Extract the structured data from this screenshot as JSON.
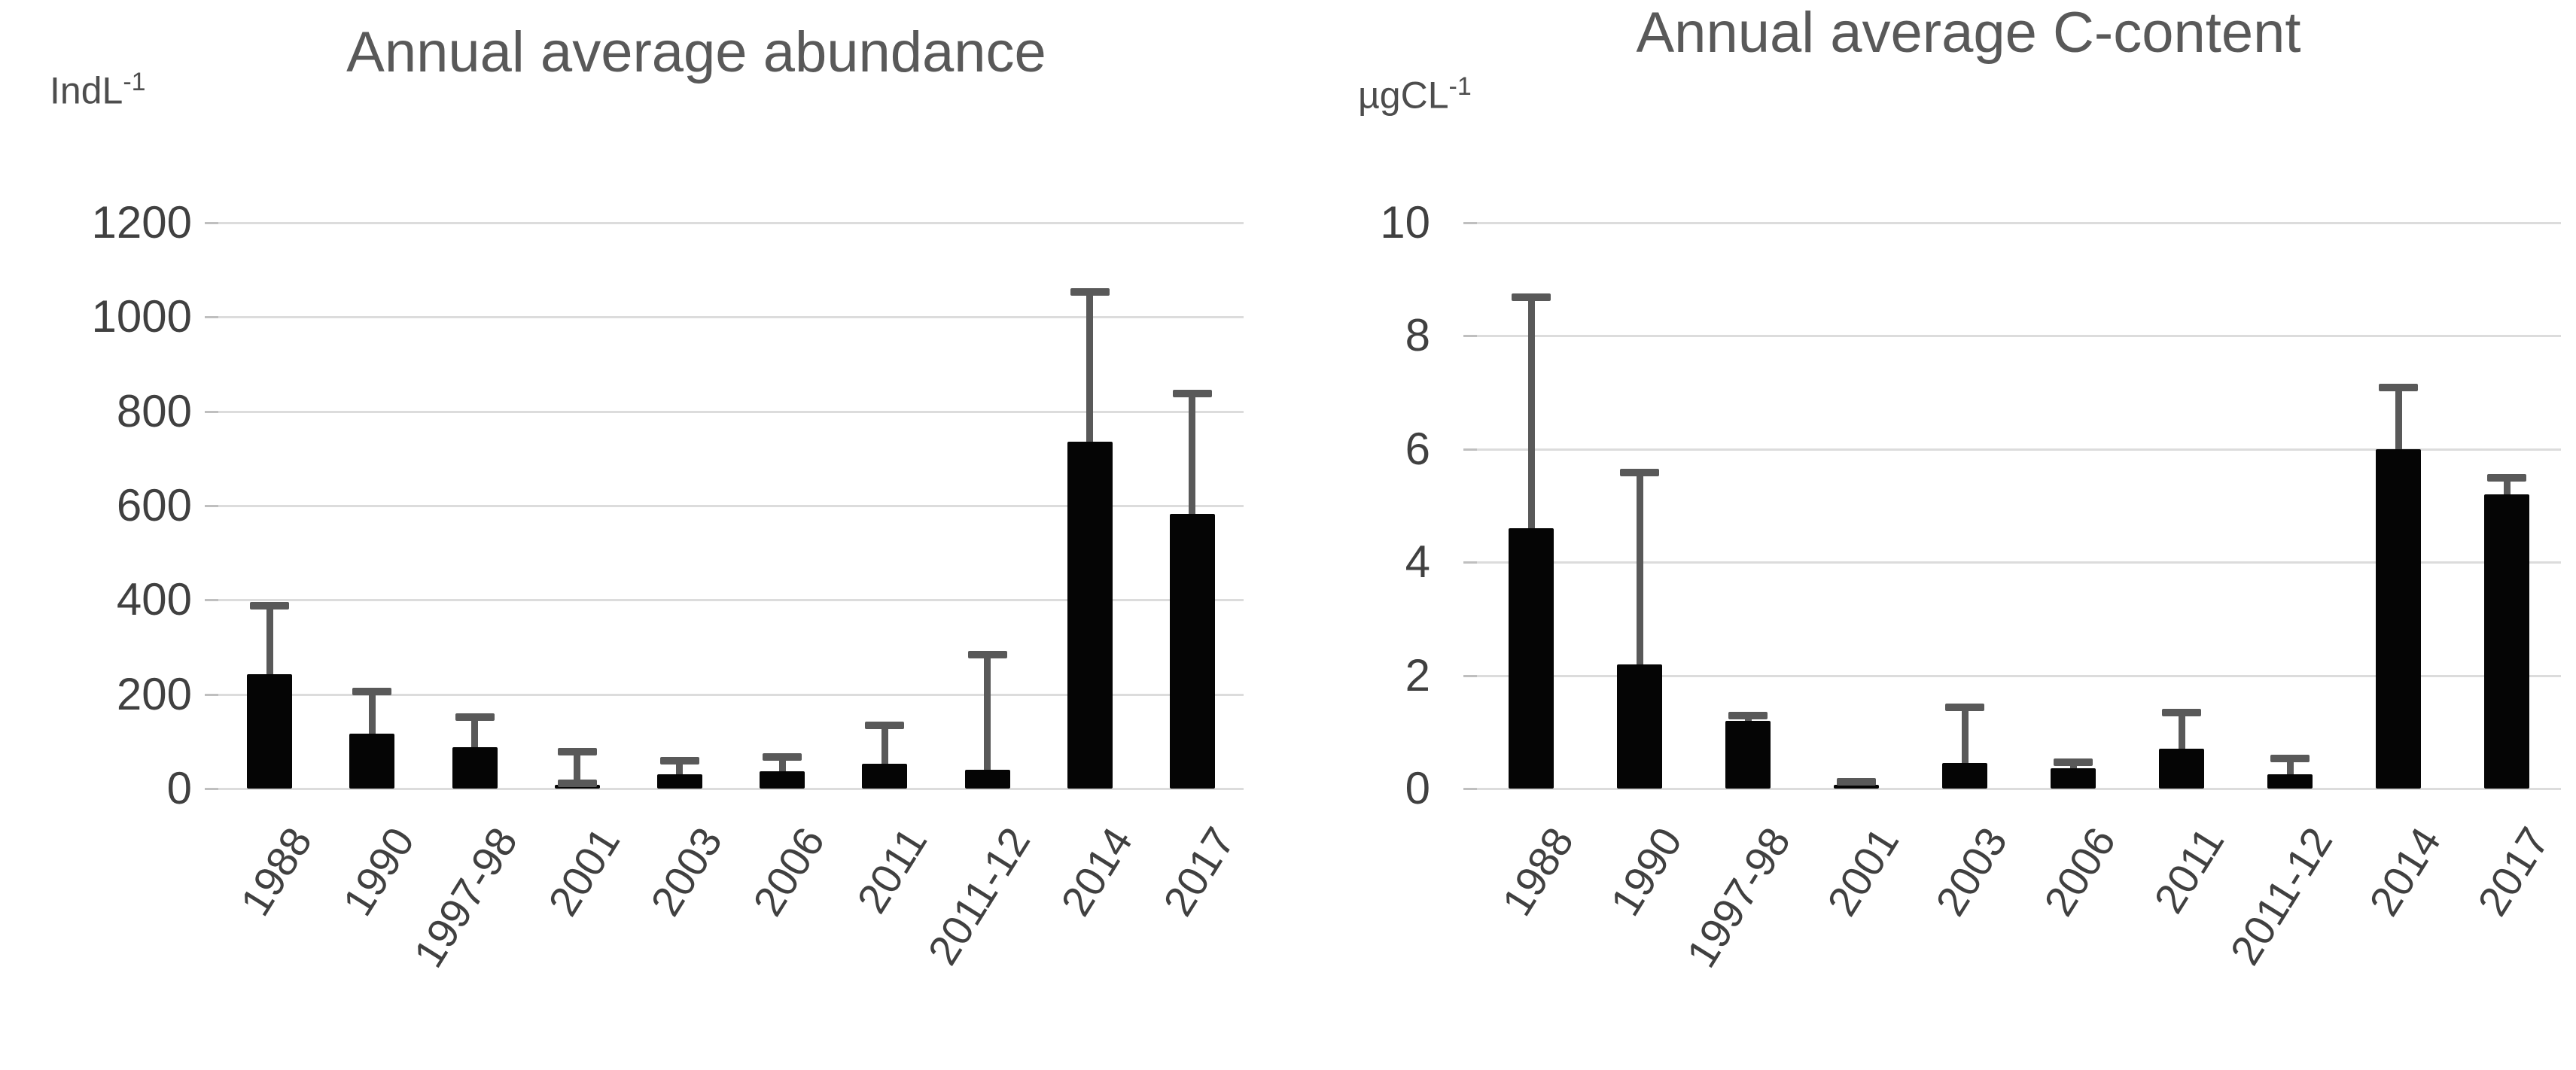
{
  "page": {
    "background": "#ffffff",
    "bar_color": "#050505",
    "error_bar_color": "#595959",
    "gridline_color": "#dcdcdc",
    "axis_text_color": "#404040",
    "title_color": "#595959"
  },
  "chart_data": [
    {
      "type": "bar",
      "title": "Annual average abundance",
      "unit": {
        "base": "IndL",
        "exp": "-1"
      },
      "categories": [
        "1988",
        "1990",
        "1997-98",
        "2001",
        "2003",
        "2006",
        "2011",
        "2011-12",
        "2014",
        "2017"
      ],
      "values": [
        242,
        117,
        87,
        8,
        30,
        36,
        52,
        40,
        735,
        582
      ],
      "error_top": [
        390,
        208,
        153,
        80,
        60,
        68,
        135,
        285,
        1055,
        840
      ],
      "error_bottom_cap": [
        false,
        false,
        false,
        true,
        false,
        false,
        false,
        false,
        false,
        false
      ],
      "ylabel": "IndL-1",
      "ylim": [
        0,
        1200
      ],
      "yticks": [
        0,
        200,
        400,
        600,
        800,
        1000,
        1200
      ],
      "grid": true,
      "legend": "none",
      "xtick_rotation_deg": -58
    },
    {
      "type": "bar",
      "title": "Annual average C-content",
      "unit": {
        "base": "µgCL",
        "exp": "-1"
      },
      "categories": [
        "1988",
        "1990",
        "1997-98",
        "2001",
        "2003",
        "2006",
        "2011",
        "2011-12",
        "2014",
        "2017"
      ],
      "values": [
        4.6,
        2.2,
        1.2,
        0.06,
        0.45,
        0.36,
        0.7,
        0.25,
        6.0,
        5.2
      ],
      "error_top": [
        8.7,
        5.6,
        1.3,
        0.13,
        1.45,
        0.48,
        1.35,
        0.55,
        7.1,
        5.5
      ],
      "error_bottom_cap": [
        false,
        false,
        false,
        false,
        false,
        false,
        false,
        false,
        false,
        false
      ],
      "ylabel": "ugCL-1",
      "ylim": [
        0,
        10
      ],
      "yticks": [
        0,
        2,
        4,
        6,
        8,
        10
      ],
      "grid": true,
      "legend": "none",
      "xtick_rotation_deg": -58
    }
  ]
}
